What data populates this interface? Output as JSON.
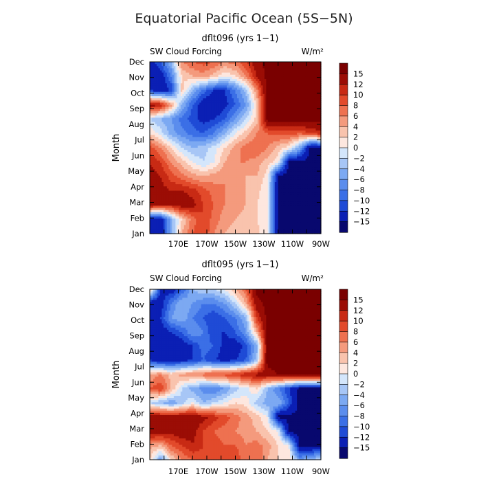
{
  "figure": {
    "title": "Equatorial Pacific Ocean (5S−5N)"
  },
  "chart_data": [
    {
      "type": "heatmap",
      "title": "dflt096 (yrs 1−1)",
      "left_label": "SW Cloud Forcing",
      "unit_label": "W/m²",
      "ylabel": "Month",
      "y_ticks": [
        "Jan",
        "Feb",
        "Mar",
        "Apr",
        "May",
        "Jun",
        "Jul",
        "Aug",
        "Sep",
        "Oct",
        "Nov",
        "Dec"
      ],
      "x_ticks": [
        "170E",
        "170W",
        "150W",
        "130W",
        "110W",
        "90W"
      ],
      "x_tick_lon": [
        170,
        190,
        210,
        230,
        250,
        270
      ],
      "xlim": [
        150,
        270
      ],
      "colorbar_labels": [
        "15",
        "12",
        "10",
        "8",
        "6",
        "4",
        "2",
        "0",
        "−2",
        "−4",
        "−6",
        "−8",
        "−10",
        "−12",
        "−15"
      ],
      "levels": [
        -15,
        -12,
        -10,
        -8,
        -6,
        -4,
        -2,
        0,
        2,
        4,
        6,
        8,
        10,
        12,
        15
      ],
      "colors": [
        "#08086e",
        "#0b1fb4",
        "#1f4bd6",
        "#3b6fe6",
        "#5b8ded",
        "#7ca9f2",
        "#a7c6f6",
        "#d4e6fb",
        "#fde7df",
        "#f9c3ad",
        "#f49a7d",
        "#ee7150",
        "#e24a2b",
        "#c82a14",
        "#9b0d05",
        "#7a0000"
      ],
      "grid": [
        [
          -14,
          -14,
          -5,
          4,
          8,
          10,
          6,
          4,
          3,
          3,
          3,
          0,
          -16,
          -16,
          -16,
          -16,
          -16
        ],
        [
          -14,
          -14,
          -5,
          2,
          7,
          10,
          7,
          5,
          4,
          3,
          2,
          0,
          -16,
          -16,
          -16,
          -16,
          -16
        ],
        [
          14,
          12,
          12,
          14,
          13,
          10,
          8,
          6,
          5,
          4,
          2,
          0,
          -16,
          -16,
          -16,
          -16,
          -16
        ],
        [
          14,
          13,
          12,
          12,
          11,
          9,
          7,
          6,
          5,
          4,
          3,
          0,
          -16,
          -16,
          -16,
          -16,
          -16
        ],
        [
          13,
          12,
          9,
          7,
          5,
          4,
          5,
          6,
          5,
          4,
          4,
          1,
          -16,
          -16,
          -16,
          -16,
          -16
        ],
        [
          12,
          10,
          6,
          3,
          0,
          -2,
          0,
          4,
          6,
          6,
          5,
          3,
          1,
          -16,
          -16,
          -16,
          -16
        ],
        [
          9,
          6,
          2,
          -2,
          -4,
          -3,
          -1,
          2,
          5,
          7,
          8,
          6,
          3,
          1,
          -5,
          -16,
          -16
        ],
        [
          2,
          -1,
          -5,
          -7,
          -9,
          -10,
          -8,
          -4,
          0,
          3,
          6,
          8,
          9,
          9,
          8,
          10,
          11
        ],
        [
          -2,
          -4,
          -6,
          -9,
          -11,
          -13,
          -12,
          -10,
          -6,
          -2,
          3,
          16,
          16,
          16,
          16,
          16,
          16
        ],
        [
          14,
          12,
          5,
          -4,
          -10,
          -14,
          -15,
          -13,
          -10,
          -6,
          2,
          16,
          16,
          16,
          16,
          16,
          16
        ],
        [
          -12,
          -14,
          -12,
          3,
          -4,
          -9,
          -12,
          -12,
          -8,
          -3,
          6,
          16,
          16,
          16,
          16,
          16,
          16
        ],
        [
          -14,
          -14,
          -8,
          2,
          4,
          5,
          3,
          0,
          2,
          6,
          12,
          16,
          16,
          16,
          16,
          16,
          16
        ],
        [
          -14,
          -10,
          -4,
          6,
          8,
          9,
          8,
          6,
          7,
          10,
          14,
          16,
          16,
          16,
          16,
          16,
          16
        ]
      ]
    },
    {
      "type": "heatmap",
      "title": "dflt095 (yrs 1−1)",
      "left_label": "SW Cloud Forcing",
      "unit_label": "W/m²",
      "ylabel": "Month",
      "y_ticks": [
        "Jan",
        "Feb",
        "Mar",
        "Apr",
        "May",
        "Jun",
        "Jul",
        "Aug",
        "Sep",
        "Oct",
        "Nov",
        "Dec"
      ],
      "x_ticks": [
        "170E",
        "170W",
        "150W",
        "130W",
        "110W",
        "90W"
      ],
      "x_tick_lon": [
        170,
        190,
        210,
        230,
        250,
        270
      ],
      "xlim": [
        150,
        270
      ],
      "colorbar_labels": [
        "15",
        "12",
        "10",
        "8",
        "6",
        "4",
        "2",
        "0",
        "−2",
        "−4",
        "−6",
        "−8",
        "−10",
        "−12",
        "−15"
      ],
      "levels": [
        -15,
        -12,
        -10,
        -8,
        -6,
        -4,
        -2,
        0,
        2,
        4,
        6,
        8,
        10,
        12,
        15
      ],
      "colors": [
        "#08086e",
        "#0b1fb4",
        "#1f4bd6",
        "#3b6fe6",
        "#5b8ded",
        "#7ca9f2",
        "#a7c6f6",
        "#d4e6fb",
        "#fde7df",
        "#f9c3ad",
        "#f49a7d",
        "#ee7150",
        "#e24a2b",
        "#c82a14",
        "#9b0d05",
        "#7a0000"
      ],
      "grid": [
        [
          2,
          -6,
          2,
          6,
          8,
          9,
          8,
          9,
          10,
          6,
          8,
          4,
          2,
          2,
          -6,
          -4,
          -2
        ],
        [
          5,
          4,
          8,
          10,
          12,
          10,
          9,
          8,
          8,
          6,
          7,
          5,
          2,
          0,
          -16,
          -16,
          -16
        ],
        [
          14,
          14,
          13,
          14,
          13,
          10,
          8,
          7,
          6,
          5,
          4,
          2,
          0,
          -16,
          -16,
          -16,
          -16
        ],
        [
          14,
          14,
          14,
          14,
          14,
          13,
          11,
          9,
          7,
          5,
          3,
          0,
          -16,
          -16,
          -16,
          -16,
          -16
        ],
        [
          -2,
          -4,
          -6,
          -3,
          0,
          -4,
          -2,
          0,
          2,
          1,
          -3,
          -5,
          -4,
          -10,
          -16,
          -16,
          -16
        ],
        [
          8,
          10,
          4,
          -2,
          -5,
          -7,
          -8,
          -6,
          -3,
          -1,
          2,
          -4,
          -8,
          -12,
          -16,
          -16,
          -16
        ],
        [
          4,
          6,
          3,
          5,
          6,
          7,
          9,
          9,
          10,
          12,
          13,
          14,
          15,
          16,
          16,
          16,
          16
        ],
        [
          -12,
          -14,
          -14,
          -13,
          -12,
          -10,
          -12,
          -13,
          -12,
          -10,
          -3,
          16,
          16,
          16,
          16,
          16,
          16
        ],
        [
          -14,
          -15,
          -15,
          -14,
          -12,
          -9,
          -10,
          -13,
          -14,
          -11,
          -5,
          16,
          16,
          16,
          16,
          16,
          16
        ],
        [
          -14,
          -14,
          -12,
          -10,
          -6,
          -8,
          -12,
          -12,
          -10,
          -6,
          4,
          16,
          16,
          16,
          16,
          16,
          16
        ],
        [
          -12,
          -12,
          -6,
          -4,
          -8,
          -10,
          -12,
          -10,
          -8,
          -4,
          10,
          16,
          16,
          16,
          16,
          16,
          16
        ],
        [
          -15,
          -14,
          -8,
          -4,
          -6,
          -8,
          -8,
          -6,
          -2,
          4,
          14,
          16,
          16,
          16,
          16,
          16,
          16
        ],
        [
          4,
          -12,
          -14,
          -10,
          -4,
          -2,
          -2,
          0,
          4,
          8,
          16,
          16,
          16,
          16,
          16,
          16,
          16
        ]
      ]
    }
  ]
}
